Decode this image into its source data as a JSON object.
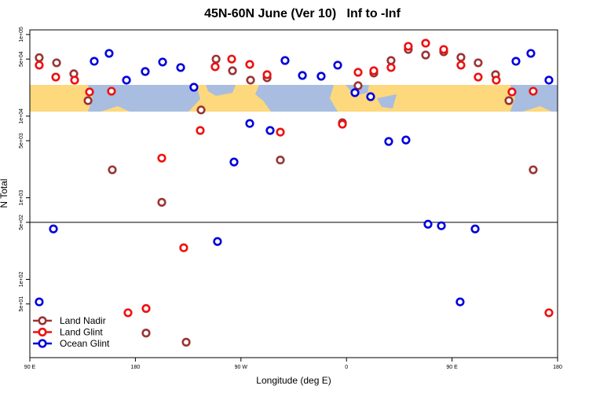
{
  "chart_data": {
    "type": "scatter",
    "title": "45N-60N June (Ver 10)   Inf to -Inf",
    "xlabel": "Longitude (deg E)",
    "ylabel": "N Total",
    "log_y": true,
    "xlim": [
      90,
      540
    ],
    "ylim": [
      11,
      114000
    ],
    "xticks": [
      {
        "value": 90,
        "label": "90 E"
      },
      {
        "value": 180,
        "label": "180"
      },
      {
        "value": 270,
        "label": "90 W"
      },
      {
        "value": 360,
        "label": "0"
      },
      {
        "value": 450,
        "label": "90 E"
      },
      {
        "value": 540,
        "label": "180"
      }
    ],
    "yticks": [
      {
        "value": 100000,
        "label": "1e+05"
      },
      {
        "value": 50000,
        "label": "5e+04"
      },
      {
        "value": 10000,
        "label": "1e+04"
      },
      {
        "value": 5000,
        "label": "5e+03"
      },
      {
        "value": 1000,
        "label": "1e+03"
      },
      {
        "value": 500,
        "label": "5e+02"
      },
      {
        "value": 100,
        "label": "1e+02"
      },
      {
        "value": 50,
        "label": "5e+01"
      }
    ],
    "hline": 500,
    "legend": "bottom-left",
    "series": [
      {
        "name": "Land Nadir",
        "color": "#9b3434",
        "x": [
          98.0,
          112.8,
          127.5,
          139.6,
          160.3,
          189.1,
          202.5,
          223.3,
          236.0,
          248.8,
          262.8,
          278.2,
          292.3,
          303.6,
          356.5,
          369.9,
          383.3,
          398.0,
          412.7,
          427.5,
          442.9,
          457.6,
          472.3,
          487.1,
          498.5,
          519.2
        ],
        "values": [
          52000,
          45000,
          33000,
          15500,
          2200,
          22,
          880,
          17,
          11900,
          50000,
          36000,
          27600,
          29500,
          2900,
          8300,
          23600,
          33700,
          48000,
          65600,
          56100,
          61400,
          52500,
          45000,
          32200,
          15500,
          2200
        ]
      },
      {
        "name": "Land Glint",
        "color": "#ee1111",
        "x": [
          98.0,
          112.1,
          128.2,
          140.9,
          159.6,
          173.7,
          189.1,
          202.5,
          221.2,
          235.3,
          248.0,
          262.1,
          277.5,
          292.3,
          303.6,
          356.5,
          369.9,
          383.3,
          398.0,
          412.7,
          427.5,
          442.9,
          457.6,
          472.3,
          487.7,
          501.1,
          519.2,
          532.6
        ],
        "values": [
          42100,
          30100,
          27600,
          19800,
          20200,
          39,
          44,
          3060,
          244,
          6670,
          40300,
          50000,
          43000,
          32200,
          6370,
          7960,
          34400,
          36000,
          39400,
          71700,
          78300,
          65600,
          42100,
          30100,
          27600,
          19800,
          20200,
          39
        ]
      },
      {
        "name": "Ocean Glint",
        "color": "#0000dd",
        "x": [
          98.0,
          110.1,
          144.9,
          157.6,
          172.4,
          188.4,
          203.2,
          218.6,
          229.9,
          250.0,
          264.1,
          277.5,
          294.9,
          307.6,
          322.4,
          338.4,
          352.5,
          367.2,
          380.6,
          396.0,
          410.7,
          429.5,
          440.9,
          456.9,
          469.7,
          504.5,
          517.2,
          532.6
        ],
        "values": [
          53,
          415,
          47000,
          58700,
          27600,
          35200,
          46000,
          39400,
          22600,
          291,
          2740,
          8130,
          6670,
          48000,
          31500,
          30800,
          42100,
          19400,
          17300,
          4890,
          5100,
          474,
          454,
          53,
          415,
          47000,
          58700,
          27600
        ]
      }
    ]
  }
}
